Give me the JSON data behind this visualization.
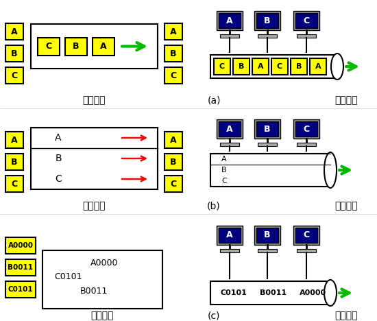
{
  "yellow": "#FFFF00",
  "navy": "#000080",
  "green": "#00BB00",
  "red": "#FF0000",
  "black": "#000000",
  "white": "#FFFFFF",
  "gray_comp": "#C0C0C0",
  "channel_text": "資料通道",
  "direction_text": "傳送方向",
  "panel_a": "(a)",
  "panel_b": "(b)",
  "panel_c": "(c)",
  "row1_labels_left": [
    "A",
    "B",
    "C"
  ],
  "row1_labels_right": [
    "A",
    "B",
    "C"
  ],
  "row1_channel": [
    "C",
    "B",
    "A"
  ],
  "row1_tube": [
    "C",
    "B",
    "A",
    "C",
    "B",
    "A"
  ],
  "row2_labels_left": [
    "A",
    "B",
    "C"
  ],
  "row2_labels_right": [
    "A",
    "B",
    "C"
  ],
  "row2_lanes": [
    "A",
    "B",
    "C"
  ],
  "row2_tube_lanes": [
    "A",
    "B",
    "C"
  ],
  "row3_labels_left": [
    "A0000",
    "B0011",
    "C0101"
  ],
  "row3_channel_items": [
    "C0101",
    "A0000",
    "B0011"
  ],
  "row3_tube_items": [
    "C0101",
    "B0011",
    "A0000"
  ],
  "comp_labels": [
    "A",
    "B",
    "C"
  ]
}
